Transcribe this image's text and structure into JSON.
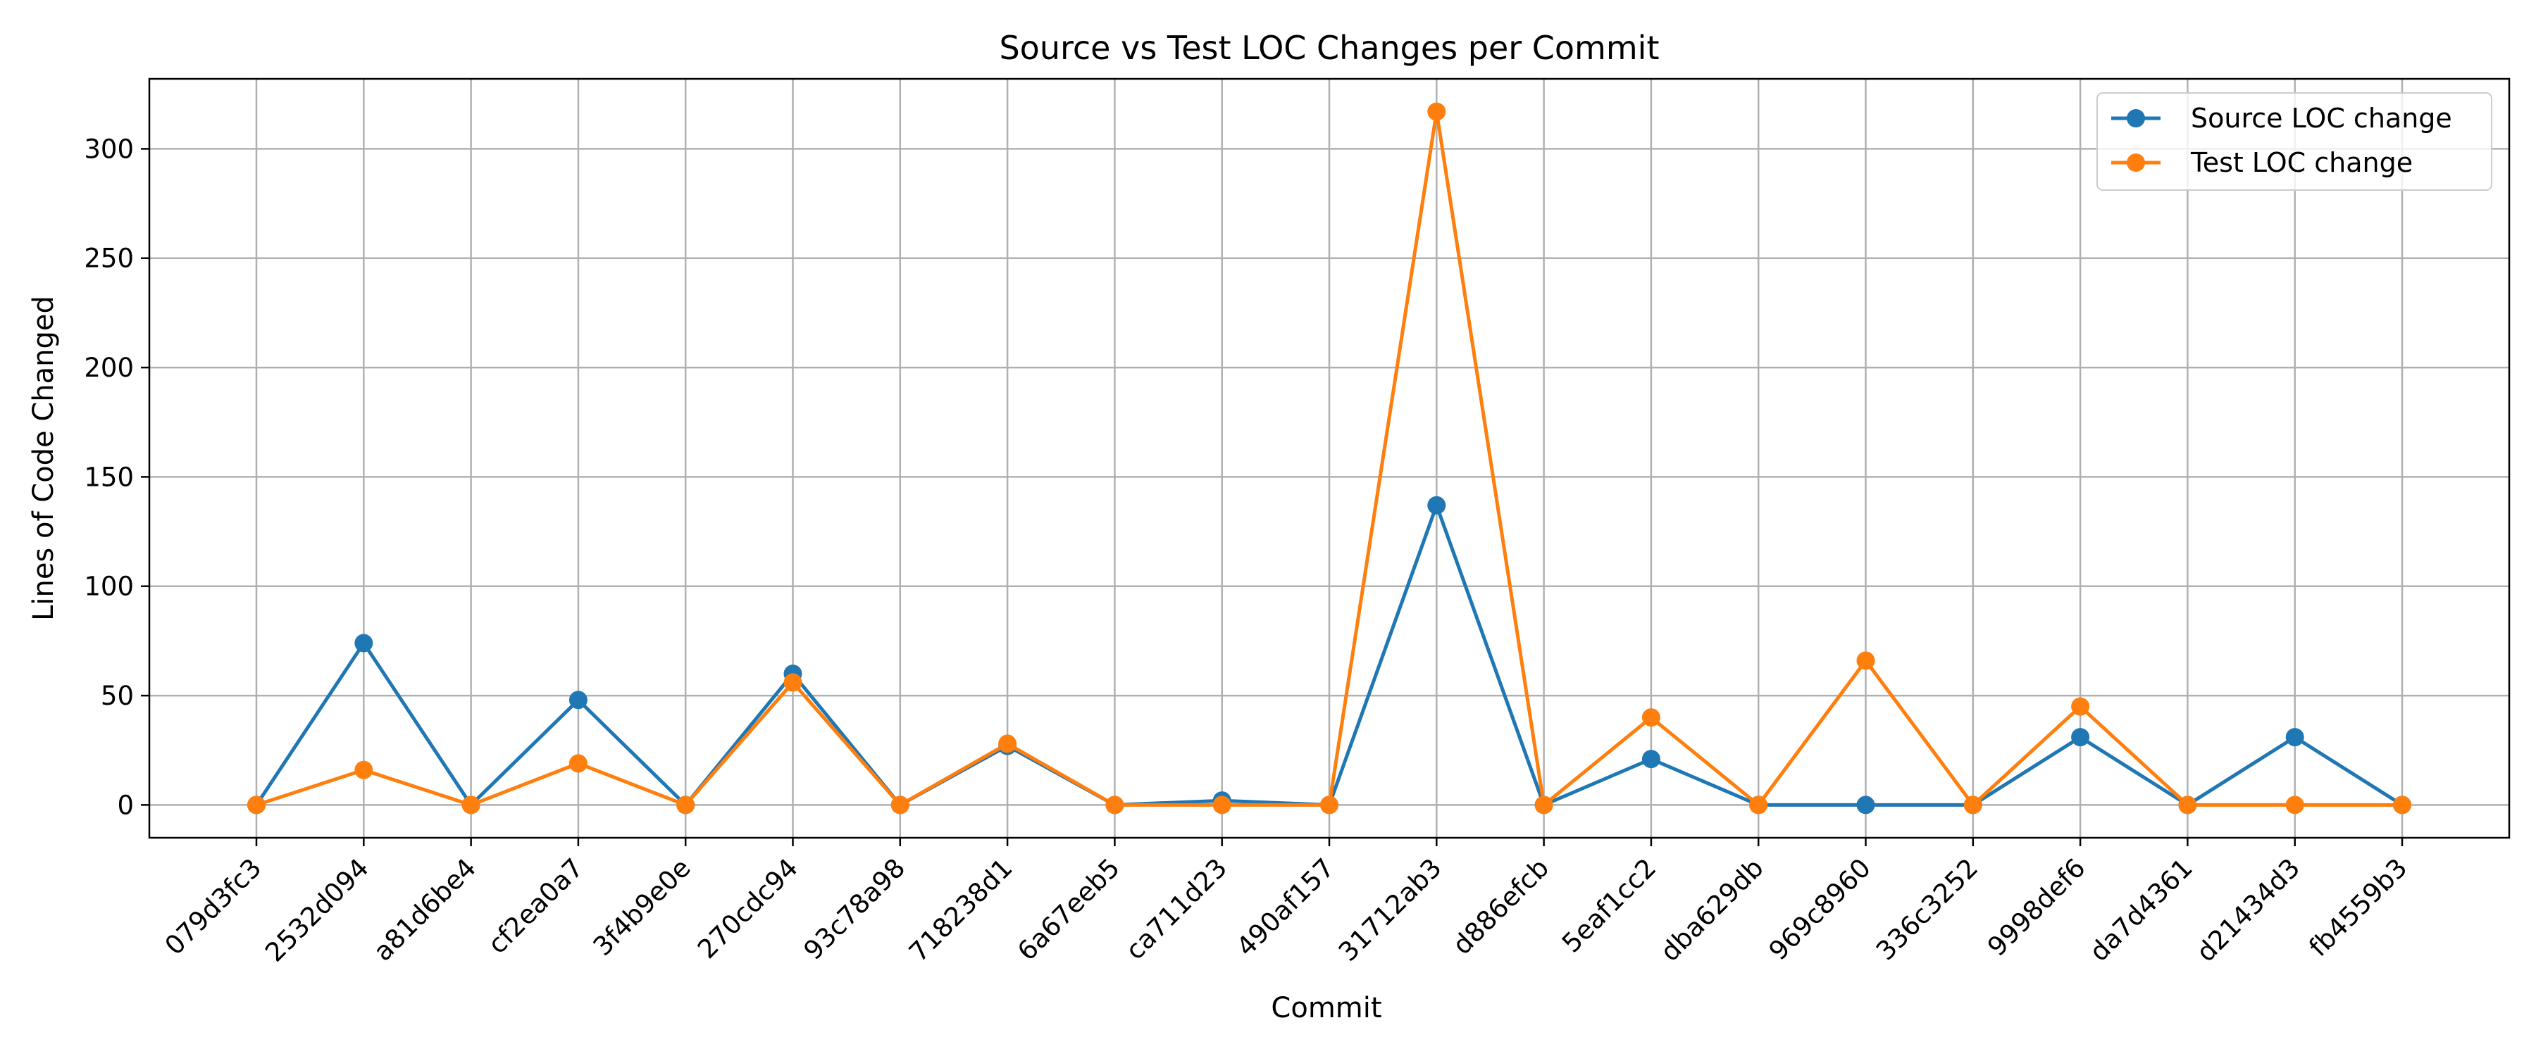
{
  "chart_data": {
    "type": "line",
    "title": "Source vs Test LOC Changes per Commit",
    "xlabel": "Commit",
    "ylabel": "Lines of Code Changed",
    "categories": [
      "079d3fc3",
      "2532d094",
      "a81d6be4",
      "cf2ea0a7",
      "3f4b9e0e",
      "270cdc94",
      "93c78a98",
      "718238d1",
      "6a67eeb5",
      "ca711d23",
      "490af157",
      "31712ab3",
      "d886efcb",
      "5eaf1cc2",
      "dba629db",
      "969c8960",
      "336c3252",
      "9998def6",
      "da7d4361",
      "d21434d3",
      "fb4559b3"
    ],
    "series": [
      {
        "name": "Source LOC change",
        "color": "#1f77b4",
        "values": [
          0,
          74,
          0,
          48,
          0,
          60,
          0,
          27,
          0,
          2,
          0,
          137,
          0,
          21,
          0,
          0,
          0,
          31,
          0,
          31,
          0
        ]
      },
      {
        "name": "Test LOC change",
        "color": "#ff7f0e",
        "values": [
          0,
          16,
          0,
          19,
          0,
          56,
          0,
          28,
          0,
          0,
          0,
          317,
          0,
          40,
          0,
          66,
          0,
          45,
          0,
          0,
          0
        ]
      }
    ],
    "ylim": [
      -15,
      332
    ],
    "yticks": [
      0,
      50,
      100,
      150,
      200,
      250,
      300
    ],
    "grid": true,
    "legend_position": "top-right"
  }
}
